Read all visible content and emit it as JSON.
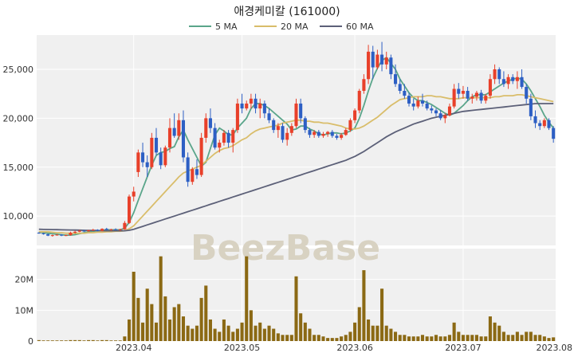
{
  "chart_data": {
    "type": "candlestick",
    "title": "애경케미칼 (161000)",
    "watermark": "BeezBase",
    "legend": [
      {
        "name": "5 MA",
        "color": "#5aa58a"
      },
      {
        "name": "20 MA",
        "color": "#d9bd6a"
      },
      {
        "name": "60 MA",
        "color": "#5c6078"
      }
    ],
    "legend_position": "top-center",
    "price_axis": {
      "ylim": [
        7000,
        28500
      ],
      "ticks": [
        10000,
        15000,
        20000,
        25000
      ],
      "tick_labels": [
        "10,000",
        "15,000",
        "20,000",
        "25,000"
      ]
    },
    "volume_axis": {
      "ylim": [
        0,
        30000000
      ],
      "ticks": [
        0,
        10000000,
        20000000
      ],
      "tick_labels": [
        "0",
        "10M",
        "20M"
      ]
    },
    "x_axis": {
      "tick_labels": [
        "2023.04",
        "2023.05",
        "2023.06",
        "2023.07",
        "2023.08"
      ],
      "tick_index": [
        21,
        45,
        70,
        94,
        118
      ]
    },
    "grid": true,
    "colors": {
      "up": "#e8402a",
      "down": "#2d5fc4",
      "volume": "#8b6914",
      "panel": "#f0f0f0",
      "grid": "#ffffff"
    },
    "candles": [
      [
        8300,
        8350,
        8200,
        8250
      ],
      [
        8250,
        8300,
        8100,
        8150
      ],
      [
        8150,
        8200,
        7950,
        8000
      ],
      [
        8000,
        8100,
        7900,
        8050
      ],
      [
        8050,
        8150,
        8000,
        8100
      ],
      [
        8100,
        8150,
        7950,
        8000
      ],
      [
        8000,
        8100,
        7950,
        8050
      ],
      [
        8050,
        8400,
        8000,
        8300
      ],
      [
        8300,
        8500,
        8200,
        8400
      ],
      [
        8400,
        8600,
        8350,
        8500
      ],
      [
        8500,
        8600,
        8400,
        8450
      ],
      [
        8450,
        8600,
        8400,
        8550
      ],
      [
        8550,
        8700,
        8500,
        8600
      ],
      [
        8600,
        8650,
        8450,
        8500
      ],
      [
        8500,
        8750,
        8450,
        8700
      ],
      [
        8700,
        8800,
        8550,
        8600
      ],
      [
        8600,
        8700,
        8500,
        8650
      ],
      [
        8650,
        8750,
        8550,
        8600
      ],
      [
        8600,
        8700,
        8500,
        8650
      ],
      [
        8650,
        9500,
        8600,
        9300
      ],
      [
        9300,
        12200,
        9200,
        12000
      ],
      [
        12000,
        13000,
        11500,
        12500
      ],
      [
        14500,
        16800,
        14000,
        16500
      ],
      [
        16500,
        17500,
        15000,
        15500
      ],
      [
        15500,
        16200,
        14000,
        15000
      ],
      [
        15000,
        18500,
        14800,
        18000
      ],
      [
        18000,
        19000,
        16200,
        16500
      ],
      [
        16500,
        17000,
        14800,
        15200
      ],
      [
        15200,
        17200,
        15000,
        17000
      ],
      [
        17000,
        20000,
        16500,
        19000
      ],
      [
        19000,
        20500,
        18000,
        18200
      ],
      [
        18200,
        20500,
        17800,
        19800
      ],
      [
        19800,
        20800,
        15500,
        16000
      ],
      [
        16000,
        16500,
        13000,
        13500
      ],
      [
        13500,
        15000,
        13200,
        14800
      ],
      [
        14800,
        15800,
        13800,
        14200
      ],
      [
        14200,
        18500,
        14000,
        18000
      ],
      [
        18000,
        20500,
        17500,
        20000
      ],
      [
        20000,
        21000,
        18500,
        19000
      ],
      [
        19000,
        19500,
        16800,
        17000
      ],
      [
        17000,
        17800,
        16500,
        17500
      ],
      [
        17500,
        18800,
        17200,
        18500
      ],
      [
        18500,
        18800,
        17000,
        17500
      ],
      [
        17500,
        19000,
        16500,
        18800
      ],
      [
        18800,
        22000,
        18500,
        21500
      ],
      [
        21500,
        22500,
        20500,
        21000
      ],
      [
        21000,
        21800,
        20800,
        21500
      ],
      [
        21500,
        22500,
        21000,
        22000
      ],
      [
        22000,
        22500,
        20500,
        21000
      ],
      [
        21000,
        22000,
        20000,
        21500
      ],
      [
        21500,
        21800,
        20000,
        20500
      ],
      [
        20500,
        21000,
        19500,
        19800
      ],
      [
        19800,
        20000,
        18500,
        18800
      ],
      [
        18800,
        19500,
        18000,
        19200
      ],
      [
        19200,
        19500,
        17500,
        17800
      ],
      [
        17800,
        19000,
        17200,
        18500
      ],
      [
        18500,
        19500,
        18200,
        19200
      ],
      [
        19200,
        22000,
        19000,
        21500
      ],
      [
        21500,
        22000,
        19500,
        20000
      ],
      [
        20000,
        20200,
        18500,
        18800
      ],
      [
        18800,
        19000,
        18000,
        18300
      ],
      [
        18300,
        18800,
        18000,
        18600
      ],
      [
        18600,
        18800,
        18000,
        18200
      ],
      [
        18200,
        18600,
        18000,
        18400
      ],
      [
        18400,
        18700,
        18100,
        18600
      ],
      [
        18600,
        18800,
        18000,
        18200
      ],
      [
        18200,
        18400,
        17800,
        18000
      ],
      [
        18000,
        18500,
        17800,
        18300
      ],
      [
        18300,
        19000,
        18200,
        18800
      ],
      [
        18800,
        20000,
        18600,
        19800
      ],
      [
        19800,
        21000,
        19500,
        20800
      ],
      [
        20800,
        23000,
        20500,
        22800
      ],
      [
        22800,
        24500,
        22500,
        24000
      ],
      [
        24000,
        27500,
        23500,
        26800
      ],
      [
        26800,
        27400,
        24000,
        25200
      ],
      [
        25200,
        27000,
        25000,
        26500
      ],
      [
        26500,
        27800,
        24800,
        25500
      ],
      [
        25500,
        26800,
        25000,
        26200
      ],
      [
        26200,
        26500,
        24000,
        24500
      ],
      [
        24500,
        25500,
        23200,
        23500
      ],
      [
        23500,
        24000,
        22500,
        22800
      ],
      [
        22800,
        23500,
        22000,
        22300
      ],
      [
        22300,
        22600,
        21200,
        21500
      ],
      [
        21500,
        22000,
        20800,
        21200
      ],
      [
        21200,
        22200,
        21000,
        21800
      ],
      [
        21800,
        22500,
        21200,
        21500
      ],
      [
        21500,
        21800,
        20800,
        21000
      ],
      [
        21000,
        21300,
        20500,
        20800
      ],
      [
        20800,
        21000,
        20200,
        20500
      ],
      [
        20500,
        20800,
        19800,
        20000
      ],
      [
        20000,
        20500,
        19500,
        20300
      ],
      [
        20300,
        21500,
        20200,
        21200
      ],
      [
        21200,
        23500,
        21000,
        23000
      ],
      [
        23000,
        23600,
        22000,
        22500
      ],
      [
        22500,
        23300,
        22000,
        22800
      ],
      [
        22800,
        23200,
        21800,
        22000
      ],
      [
        22000,
        22500,
        21500,
        22200
      ],
      [
        22200,
        22800,
        21800,
        22600
      ],
      [
        22600,
        22900,
        21500,
        21800
      ],
      [
        21800,
        22500,
        21500,
        22300
      ],
      [
        22300,
        24500,
        22000,
        24000
      ],
      [
        24000,
        25500,
        23500,
        25000
      ],
      [
        25000,
        25200,
        23500,
        24000
      ],
      [
        24000,
        24800,
        23200,
        23500
      ],
      [
        23500,
        24500,
        23000,
        24200
      ],
      [
        24200,
        24500,
        23500,
        23800
      ],
      [
        23800,
        24800,
        23000,
        24200
      ],
      [
        24200,
        25000,
        23000,
        23200
      ],
      [
        23200,
        23500,
        21500,
        22000
      ],
      [
        22000,
        22500,
        19800,
        20200
      ],
      [
        20200,
        20800,
        19000,
        19500
      ],
      [
        19500,
        19800,
        18800,
        19200
      ],
      [
        19200,
        20000,
        19000,
        19800
      ],
      [
        19800,
        20000,
        18800,
        19000
      ],
      [
        19000,
        19200,
        17500,
        17900
      ]
    ],
    "volumes": [
      0.3,
      0.2,
      0.2,
      0.2,
      0.2,
      0.2,
      0.2,
      0.3,
      0.3,
      0.3,
      0.2,
      0.3,
      0.3,
      0.2,
      0.3,
      0.3,
      0.2,
      0.2,
      0.2,
      1.5,
      7,
      22.5,
      14,
      6,
      17,
      12,
      6,
      27.5,
      14.5,
      7,
      11,
      12,
      8,
      5,
      4,
      5,
      14,
      18,
      7,
      4,
      3,
      7,
      5,
      3,
      4,
      6,
      27.5,
      10,
      5,
      6,
      4,
      5,
      4,
      2.5,
      2,
      2,
      2,
      21,
      9,
      6,
      4,
      2,
      2,
      1.5,
      1,
      1,
      1,
      1.5,
      2,
      3,
      6,
      11,
      23,
      7,
      5,
      5,
      17,
      5,
      4,
      3,
      2,
      2,
      1.5,
      1.5,
      1.5,
      2,
      1.5,
      1.5,
      2,
      1.5,
      1.5,
      2,
      6,
      3,
      2,
      2,
      2,
      2,
      1.5,
      1.5,
      8,
      6,
      5,
      3,
      2,
      2,
      3,
      2,
      3,
      3,
      2,
      2,
      1.5,
      1,
      1.2
    ],
    "volume_unit": "M",
    "ma5": [
      8350,
      8300,
      8250,
      8200,
      8150,
      8100,
      8050,
      8050,
      8100,
      8200,
      8300,
      8400,
      8450,
      8500,
      8550,
      8600,
      8600,
      8600,
      8600,
      8750,
      9350,
      10350,
      11600,
      12800,
      14000,
      15200,
      16200,
      16500,
      16600,
      16900,
      17100,
      18100,
      18800,
      17800,
      16900,
      16000,
      15100,
      15500,
      16900,
      18300,
      19000,
      18700,
      18300,
      18300,
      19000,
      19500,
      20000,
      21000,
      21500,
      21500,
      21300,
      21000,
      20600,
      20200,
      19800,
      19400,
      18800,
      18900,
      19200,
      19200,
      18900,
      18700,
      18400,
      18300,
      18400,
      18500,
      18500,
      18400,
      18500,
      18700,
      19000,
      20000,
      21300,
      22800,
      24100,
      25100,
      25900,
      26200,
      25600,
      25000,
      24000,
      23300,
      22600,
      22100,
      21800,
      21800,
      21600,
      21400,
      21100,
      20800,
      20500,
      20300,
      20500,
      20900,
      21300,
      21800,
      22200,
      22400,
      22400,
      22400,
      22700,
      23000,
      23300,
      23600,
      23800,
      24000,
      24100,
      24000,
      23500,
      22800,
      22000,
      21200,
      20300,
      19600,
      19000
    ],
    "ma20": [
      8400,
      8400,
      8400,
      8350,
      8300,
      8300,
      8250,
      8250,
      8250,
      8250,
      8250,
      8300,
      8300,
      8350,
      8350,
      8400,
      8400,
      8450,
      8450,
      8500,
      8700,
      9000,
      9500,
      10000,
      10500,
      11000,
      11500,
      12000,
      12500,
      13000,
      13500,
      14000,
      14400,
      14600,
      14800,
      15000,
      15200,
      15600,
      16000,
      16400,
      16700,
      16900,
      17000,
      17200,
      17500,
      17800,
      18000,
      18400,
      18700,
      18900,
      19000,
      19100,
      19200,
      19300,
      19500,
      19600,
      19700,
      19800,
      19800,
      19700,
      19700,
      19600,
      19600,
      19500,
      19500,
      19400,
      19300,
      19200,
      19000,
      18900,
      18900,
      19000,
      19200,
      19500,
      19800,
      20100,
      20500,
      20900,
      21300,
      21600,
      21900,
      22000,
      22100,
      22200,
      22200,
      22200,
      22300,
      22300,
      22200,
      22200,
      22100,
      22000,
      22000,
      22000,
      22100,
      22100,
      22100,
      22100,
      22100,
      22100,
      22100,
      22200,
      22200,
      22300,
      22300,
      22300,
      22400,
      22400,
      22300,
      22200,
      22100,
      22000,
      21900,
      21800,
      21700
    ],
    "ma60": [
      8650,
      8640,
      8630,
      8620,
      8610,
      8600,
      8590,
      8580,
      8570,
      8560,
      8550,
      8540,
      8530,
      8520,
      8510,
      8500,
      8500,
      8500,
      8500,
      8500,
      8550,
      8650,
      8800,
      8950,
      9100,
      9250,
      9400,
      9550,
      9700,
      9850,
      10000,
      10150,
      10300,
      10450,
      10600,
      10750,
      10900,
      11050,
      11200,
      11350,
      11500,
      11650,
      11800,
      11950,
      12100,
      12250,
      12400,
      12550,
      12700,
      12850,
      13000,
      13150,
      13300,
      13450,
      13600,
      13750,
      13900,
      14050,
      14200,
      14350,
      14500,
      14650,
      14800,
      14950,
      15100,
      15250,
      15400,
      15550,
      15700,
      15900,
      16100,
      16350,
      16600,
      16900,
      17200,
      17500,
      17800,
      18100,
      18350,
      18600,
      18800,
      19000,
      19200,
      19400,
      19550,
      19700,
      19850,
      20000,
      20100,
      20200,
      20300,
      20400,
      20500,
      20600,
      20700,
      20750,
      20800,
      20850,
      20900,
      20950,
      21000,
      21050,
      21100,
      21150,
      21200,
      21250,
      21300,
      21350,
      21400,
      21450,
      21500,
      21500,
      21500,
      21500,
      21500
    ]
  }
}
